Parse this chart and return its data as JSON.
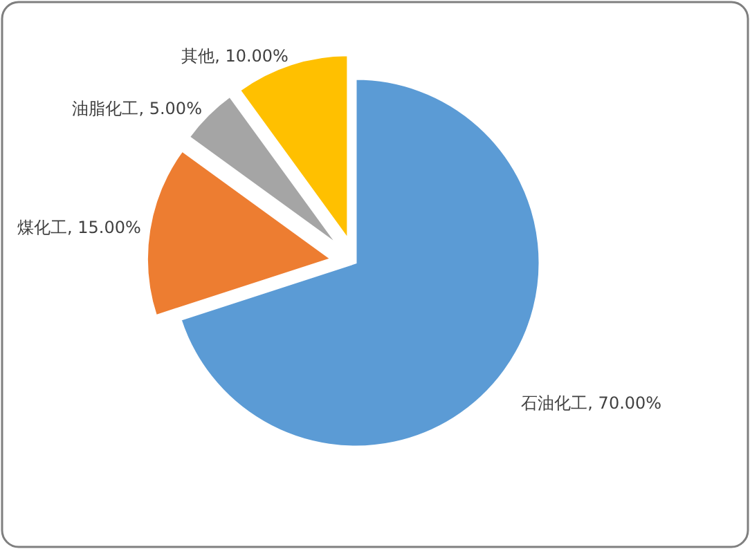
{
  "chart_data": {
    "type": "pie",
    "categories": [
      "石油化工",
      "煤化工",
      "油脂化工",
      "其他"
    ],
    "values": [
      70,
      15,
      5,
      10
    ],
    "colors": [
      "#5b9bd5",
      "#ed7d31",
      "#a5a5a5",
      "#ffc000"
    ],
    "value_labels": [
      "70.00%",
      "15.00%",
      "5.00%",
      "10.00%"
    ]
  }
}
